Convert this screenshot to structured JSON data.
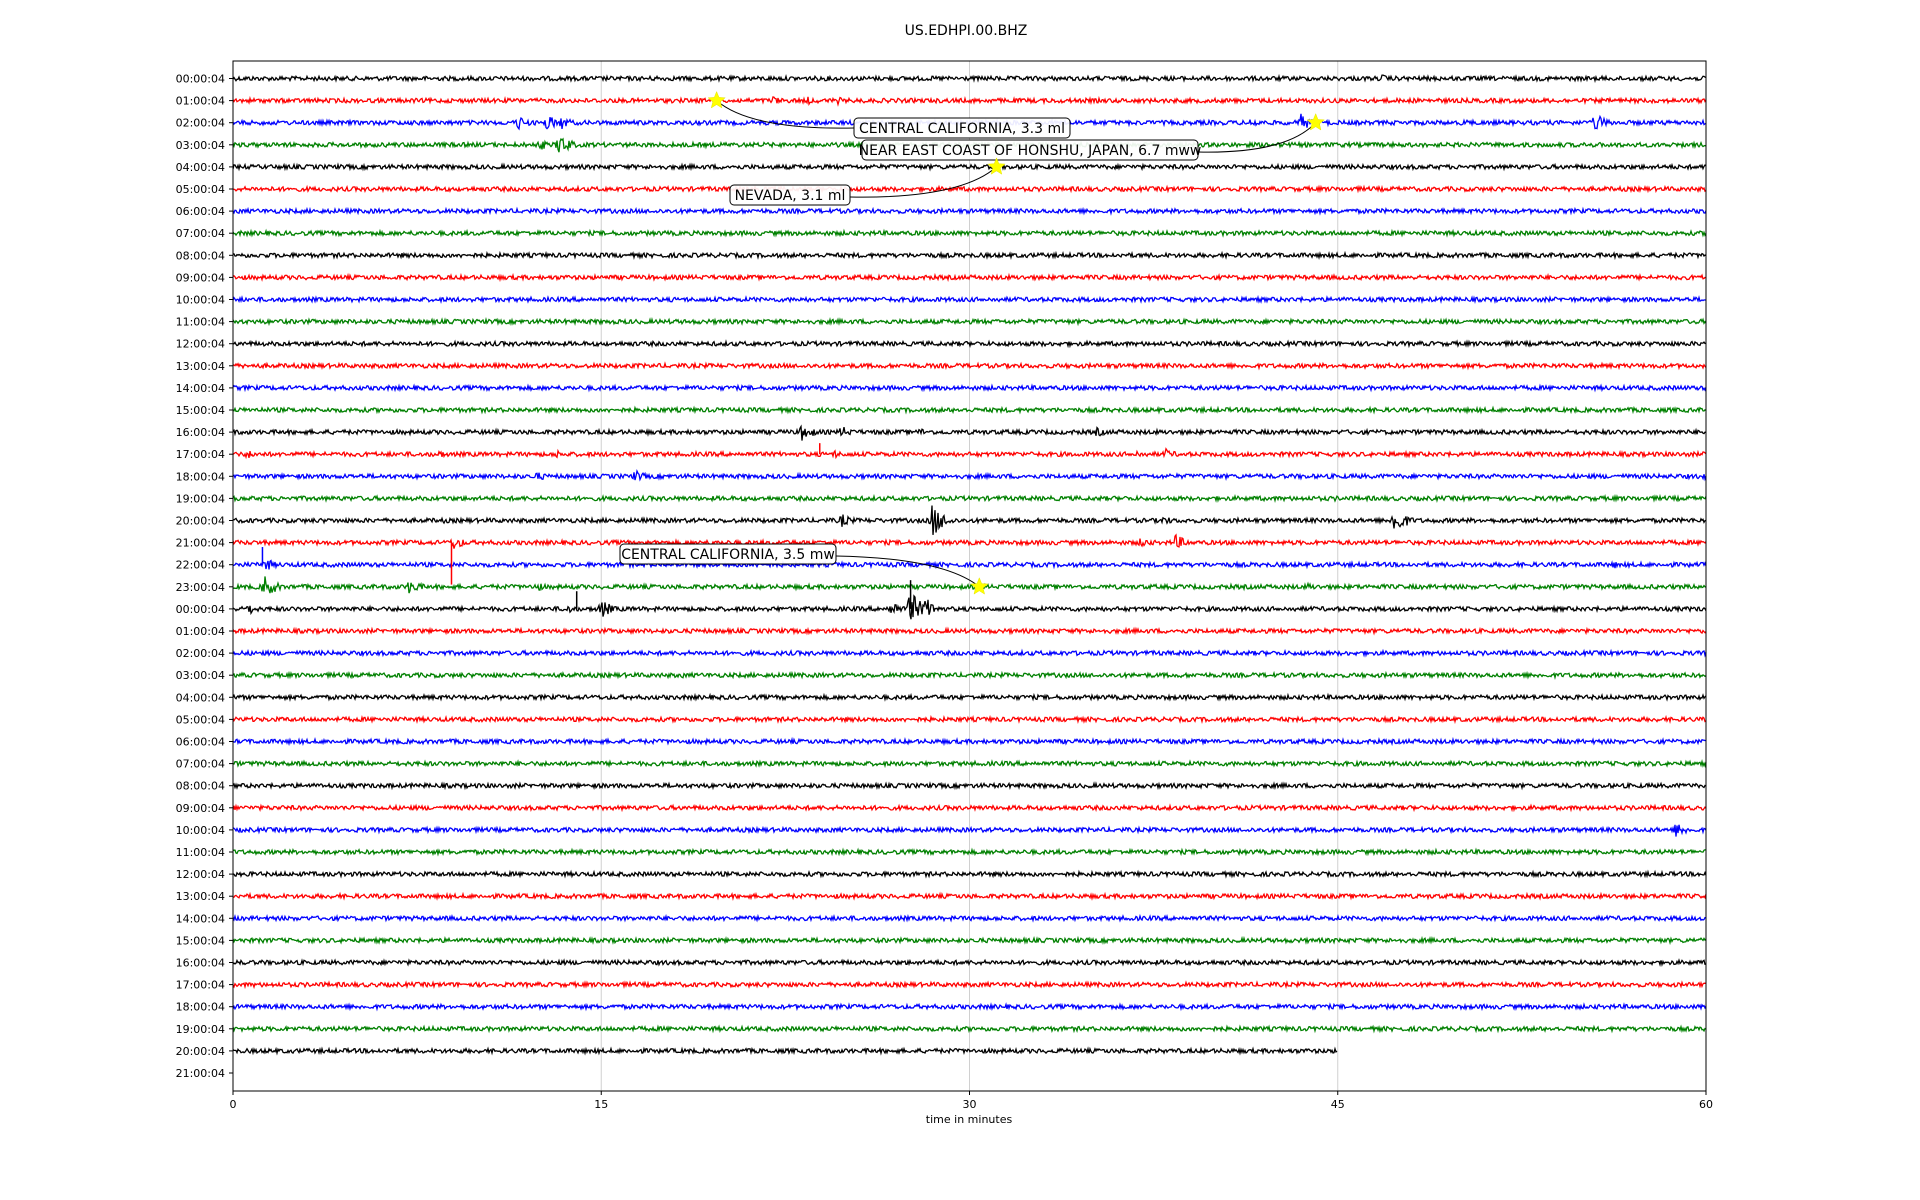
{
  "chart_data": {
    "type": "line",
    "title": "US.EDHPI.00.BHZ",
    "xlabel": "time in minutes",
    "xlim": [
      0,
      60
    ],
    "x_ticks": [
      "0",
      "15",
      "30",
      "45",
      "60"
    ],
    "grid": "vertical lines at 15, 30, 45 minutes",
    "colors": [
      "#000000",
      "#ff0000",
      "#0000ff",
      "#008000"
    ],
    "row_labels": [
      "00:00:04",
      "01:00:04",
      "02:00:04",
      "03:00:04",
      "04:00:04",
      "05:00:04",
      "06:00:04",
      "07:00:04",
      "08:00:04",
      "09:00:04",
      "10:00:04",
      "11:00:04",
      "12:00:04",
      "13:00:04",
      "14:00:04",
      "15:00:04",
      "16:00:04",
      "17:00:04",
      "18:00:04",
      "19:00:04",
      "20:00:04",
      "21:00:04",
      "22:00:04",
      "23:00:04",
      "00:00:04",
      "01:00:04",
      "02:00:04",
      "03:00:04",
      "04:00:04",
      "05:00:04",
      "06:00:04",
      "07:00:04",
      "08:00:04",
      "09:00:04",
      "10:00:04",
      "11:00:04",
      "12:00:04",
      "13:00:04",
      "14:00:04",
      "15:00:04",
      "16:00:04",
      "17:00:04",
      "18:00:04",
      "19:00:04",
      "20:00:04",
      "21:00:04"
    ],
    "trace_end_minutes": [
      60,
      60,
      60,
      60,
      60,
      60,
      60,
      60,
      60,
      60,
      60,
      60,
      60,
      60,
      60,
      60,
      60,
      60,
      60,
      60,
      60,
      60,
      60,
      60,
      60,
      60,
      60,
      60,
      60,
      60,
      60,
      60,
      60,
      60,
      60,
      60,
      60,
      60,
      60,
      60,
      60,
      60,
      60,
      60,
      45,
      0
    ],
    "events": [
      {
        "row": 1,
        "minute": 19.7,
        "label": "CENTRAL CALIFORNIA, 3.3 ml"
      },
      {
        "row": 2,
        "minute": 44.1,
        "label": "NEAR EAST COAST OF HONSHU, JAPAN, 6.7 mww"
      },
      {
        "row": 4,
        "minute": 31.1,
        "label": "NEVADA, 3.1 ml"
      },
      {
        "row": 23,
        "minute": 30.4,
        "label": "CENTRAL CALIFORNIA, 3.5 mw"
      }
    ],
    "bursts": [
      {
        "row": 0,
        "minute": 17.2,
        "amp": 0.25
      },
      {
        "row": 0,
        "minute": 46.8,
        "amp": 0.3
      },
      {
        "row": 1,
        "minute": 22.0,
        "amp": 0.35
      },
      {
        "row": 1,
        "minute": 23.4,
        "amp": 0.3
      },
      {
        "row": 1,
        "minute": 24.6,
        "amp": 0.3
      },
      {
        "row": 2,
        "minute": 11.6,
        "amp": 0.55
      },
      {
        "row": 2,
        "minute": 12.8,
        "amp": 0.6
      },
      {
        "row": 2,
        "minute": 13.4,
        "amp": 0.5
      },
      {
        "row": 2,
        "minute": 41.5,
        "amp": 0.4
      },
      {
        "row": 2,
        "minute": 43.5,
        "amp": 0.65
      },
      {
        "row": 2,
        "minute": 50.2,
        "amp": 0.3
      },
      {
        "row": 2,
        "minute": 55.5,
        "amp": 0.7
      },
      {
        "row": 3,
        "minute": 12.5,
        "amp": 0.4
      },
      {
        "row": 3,
        "minute": 13.3,
        "amp": 0.85
      },
      {
        "row": 16,
        "minute": 23.2,
        "amp": 0.7
      },
      {
        "row": 16,
        "minute": 24.8,
        "amp": 0.45
      },
      {
        "row": 16,
        "minute": 28.0,
        "amp": 0.3
      },
      {
        "row": 16,
        "minute": 35.2,
        "amp": 0.35
      },
      {
        "row": 17,
        "minute": 0.6,
        "amp": 0.35
      },
      {
        "row": 17,
        "minute": 8.4,
        "amp": 0.3
      },
      {
        "row": 17,
        "minute": 13.2,
        "amp": 0.3
      },
      {
        "row": 17,
        "minute": 24.5,
        "amp": 0.3
      },
      {
        "row": 17,
        "minute": 36.8,
        "amp": 0.3
      },
      {
        "row": 17,
        "minute": 38.0,
        "amp": 0.4
      },
      {
        "row": 18,
        "minute": 12.4,
        "amp": 0.35
      },
      {
        "row": 18,
        "minute": 16.4,
        "amp": 0.45
      },
      {
        "row": 18,
        "minute": 43.5,
        "amp": 0.2
      },
      {
        "row": 18,
        "minute": 59.9,
        "amp": 0.25
      },
      {
        "row": 19,
        "minute": 36.3,
        "amp": 0.2
      },
      {
        "row": 19,
        "minute": 44.9,
        "amp": 0.2
      },
      {
        "row": 20,
        "minute": 8.6,
        "amp": 0.2
      },
      {
        "row": 20,
        "minute": 24.8,
        "amp": 0.5
      },
      {
        "row": 20,
        "minute": 28.5,
        "amp": 1.3
      },
      {
        "row": 20,
        "minute": 37.9,
        "amp": 0.35
      },
      {
        "row": 20,
        "minute": 47.3,
        "amp": 1.1
      },
      {
        "row": 21,
        "minute": 9.0,
        "amp": 0.55
      },
      {
        "row": 21,
        "minute": 37.0,
        "amp": 0.4
      },
      {
        "row": 21,
        "minute": 38.4,
        "amp": 0.6
      },
      {
        "row": 22,
        "minute": 1.3,
        "amp": 0.5
      },
      {
        "row": 22,
        "minute": 56.2,
        "amp": 0.3
      },
      {
        "row": 23,
        "minute": 1.3,
        "amp": 0.9
      },
      {
        "row": 23,
        "minute": 7.2,
        "amp": 0.6
      },
      {
        "row": 23,
        "minute": 12.3,
        "amp": 0.4
      },
      {
        "row": 23,
        "minute": 26.5,
        "amp": 0.2
      },
      {
        "row": 23,
        "minute": 43.8,
        "amp": 0.3
      },
      {
        "row": 24,
        "minute": 0.6,
        "amp": 0.45
      },
      {
        "row": 24,
        "minute": 13.6,
        "amp": 0.35
      },
      {
        "row": 24,
        "minute": 15.0,
        "amp": 0.7
      },
      {
        "row": 24,
        "minute": 26.8,
        "amp": 0.6
      },
      {
        "row": 24,
        "minute": 27.6,
        "amp": 1.3
      },
      {
        "row": 24,
        "minute": 28.2,
        "amp": 0.85
      },
      {
        "row": 27,
        "minute": 18.3,
        "amp": 0.2
      },
      {
        "row": 34,
        "minute": 58.8,
        "amp": 0.6
      },
      {
        "row": 41,
        "minute": 0.8,
        "amp": 0.2
      },
      {
        "row": 43,
        "minute": 2.2,
        "amp": 0.2
      }
    ],
    "spikes": [
      {
        "row": 21,
        "minute": 8.9,
        "dy": 1.9
      },
      {
        "row": 22,
        "minute": 1.2,
        "dy": -0.8
      },
      {
        "row": 17,
        "minute": 23.9,
        "dy": -0.5
      },
      {
        "row": 24,
        "minute": 27.6,
        "dy": -1.3
      },
      {
        "row": 24,
        "minute": 14.0,
        "dy": -0.8
      }
    ]
  }
}
